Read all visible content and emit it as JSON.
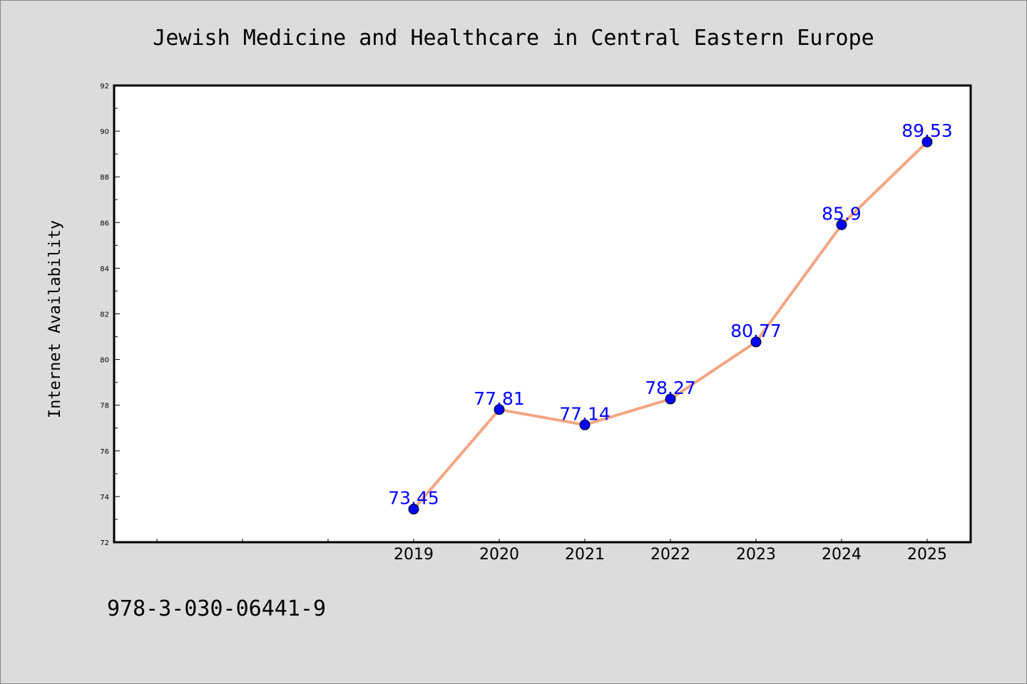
{
  "chart_data": {
    "type": "line",
    "title": "Jewish Medicine and Healthcare in Central Eastern Europe",
    "ylabel": "Internet Availability",
    "xlabel": "",
    "ylim": [
      72,
      92
    ],
    "yticks": [
      72,
      74,
      76,
      78,
      80,
      82,
      84,
      86,
      88,
      90,
      92
    ],
    "x_slots": [
      "",
      "",
      "",
      "2019",
      "2020",
      "2021",
      "2022",
      "2023",
      "2024",
      "2025"
    ],
    "categories": [
      "2019",
      "2020",
      "2021",
      "2022",
      "2023",
      "2024",
      "2025"
    ],
    "values": [
      73.45,
      77.81,
      77.14,
      78.27,
      80.77,
      85.9,
      89.53
    ],
    "data_labels": [
      "73.45",
      "77.81",
      "77.14",
      "78.27",
      "80.77",
      "85.9",
      "89.53"
    ],
    "grid": false,
    "colors": {
      "line": "#f4a582",
      "marker": "#0000ff",
      "label": "#0000ff",
      "background": "#dcdcdc",
      "plot_background": "#ffffff"
    }
  },
  "footer": {
    "isbn": "978-3-030-06441-9"
  }
}
